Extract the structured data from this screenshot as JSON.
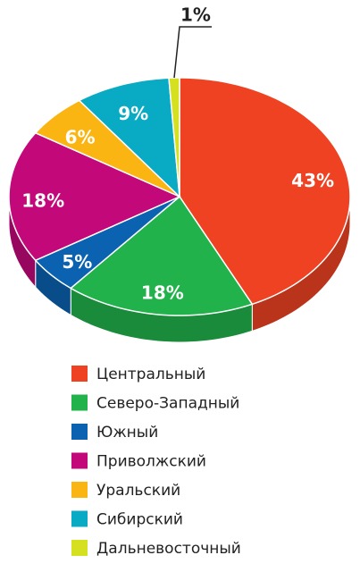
{
  "chart_data": {
    "type": "pie",
    "categories": [
      "Центральный",
      "Северо-Западный",
      "Южный",
      "Приволжский",
      "Уральский",
      "Сибирский",
      "Дальневосточный"
    ],
    "values": [
      43,
      18,
      5,
      18,
      6,
      9,
      1
    ],
    "value_labels": [
      "43%",
      "18%",
      "5%",
      "18%",
      "6%",
      "9%",
      "1%"
    ],
    "colors": [
      "#ee4223",
      "#21b24b",
      "#0a62b0",
      "#c3097a",
      "#fbb513",
      "#08abc3",
      "#d5e021"
    ]
  }
}
